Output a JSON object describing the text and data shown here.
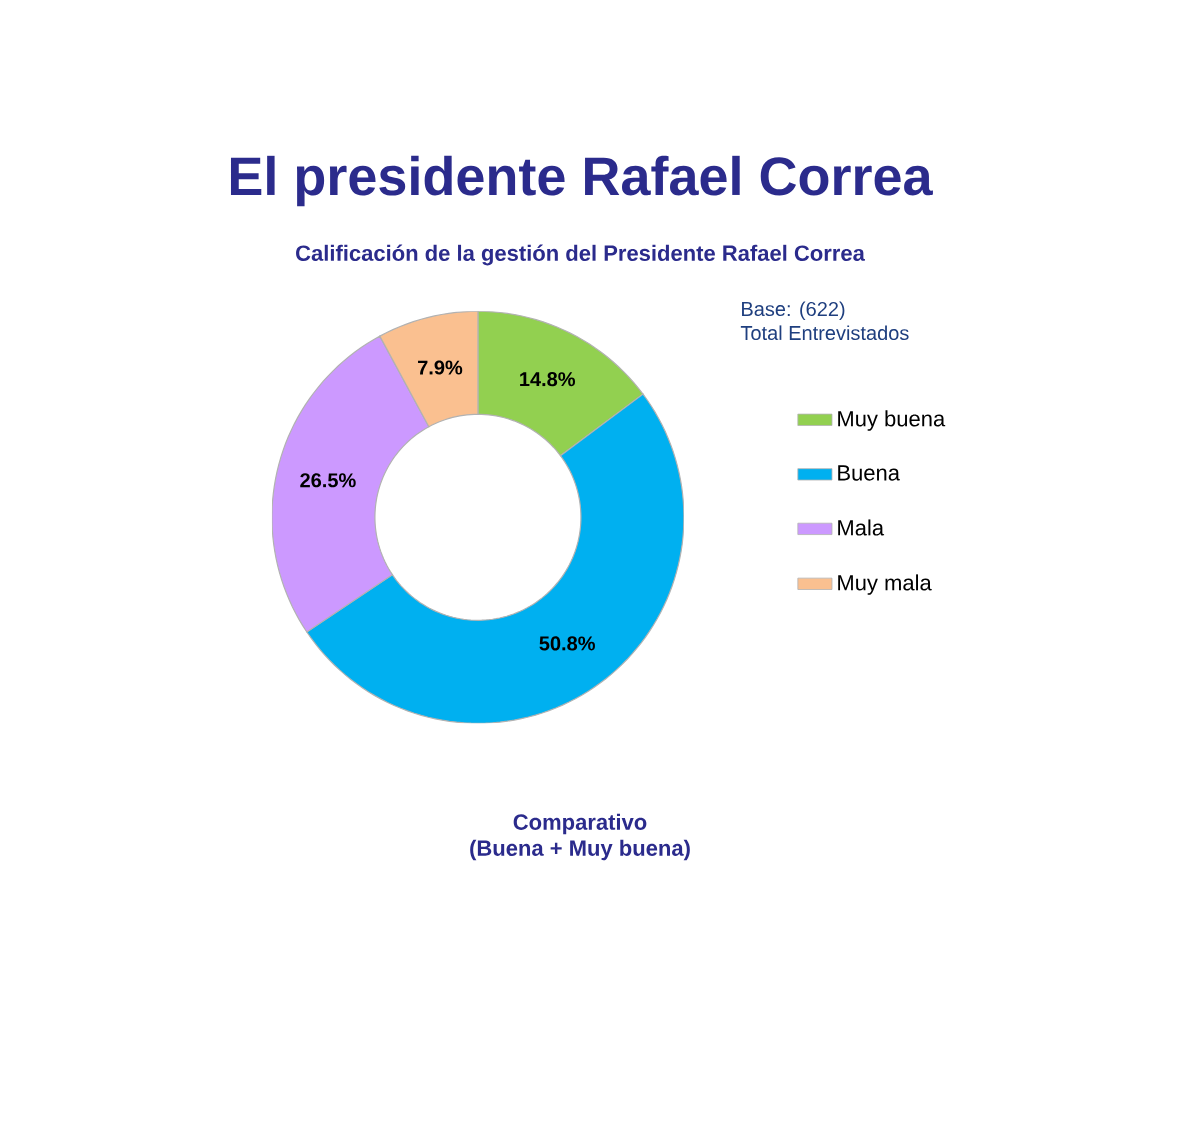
{
  "chart_data": {
    "type": "donut",
    "title": "El presidente Rafael Correa",
    "subtitle": "Calificación de la gestión del Presidente Rafael Correa",
    "categories": [
      "Muy buena",
      "Buena",
      "Mala",
      "Muy mala"
    ],
    "values": [
      14.8,
      50.8,
      26.5,
      7.9
    ],
    "colors": [
      "#92d050",
      "#00b0f0",
      "#cc99ff",
      "#fac090"
    ],
    "value_labels": [
      "14.8%",
      "50.8%",
      "26.5%",
      "7.9%"
    ],
    "annotations": [
      "Base: (622)\nTotal Entrevistados",
      "Comparativo\n(Buena + Muy buena)"
    ],
    "legend": "right"
  }
}
